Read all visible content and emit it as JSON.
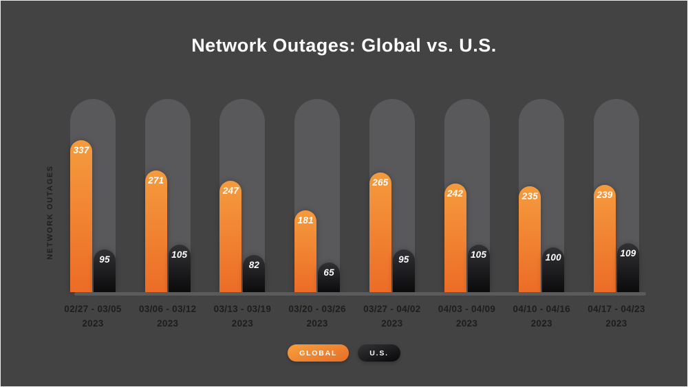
{
  "title": "Network Outages: Global vs. U.S.",
  "y_axis_label": "NETWORK OUTAGES",
  "legend": {
    "global_label": "GLOBAL",
    "us_label": "U.S."
  },
  "colors": {
    "background": "#434343",
    "pill_track": "#59585a",
    "global_top": "#f59b3d",
    "global_bottom": "#ec6c27",
    "us_top": "#313033",
    "us_bottom": "#0b0b0c",
    "axis_line": "#5b5b5d",
    "title_text": "#fcfcfc",
    "axis_text": "#1d1d1d",
    "value_text": "#ffffff"
  },
  "chart_data": {
    "type": "bar",
    "title": "Network Outages: Global vs. U.S.",
    "xlabel": "",
    "ylabel": "NETWORK OUTAGES",
    "categories": [
      {
        "range": "02/27 - 03/05",
        "year": "2023"
      },
      {
        "range": "03/06 - 03/12",
        "year": "2023"
      },
      {
        "range": "03/13 - 03/19",
        "year": "2023"
      },
      {
        "range": "03/20 - 03/26",
        "year": "2023"
      },
      {
        "range": "03/27 - 04/02",
        "year": "2023"
      },
      {
        "range": "04/03 - 04/09",
        "year": "2023"
      },
      {
        "range": "04/10 - 04/16",
        "year": "2023"
      },
      {
        "range": "04/17 - 04/23",
        "year": "2023"
      }
    ],
    "series": [
      {
        "name": "GLOBAL",
        "values": [
          337,
          271,
          247,
          181,
          265,
          242,
          235,
          239
        ]
      },
      {
        "name": "U.S.",
        "values": [
          95,
          105,
          82,
          65,
          95,
          105,
          100,
          109
        ]
      }
    ],
    "ylim": [
      0,
      430
    ],
    "grid": false,
    "legend_position": "bottom",
    "value_labels_shown": true
  }
}
